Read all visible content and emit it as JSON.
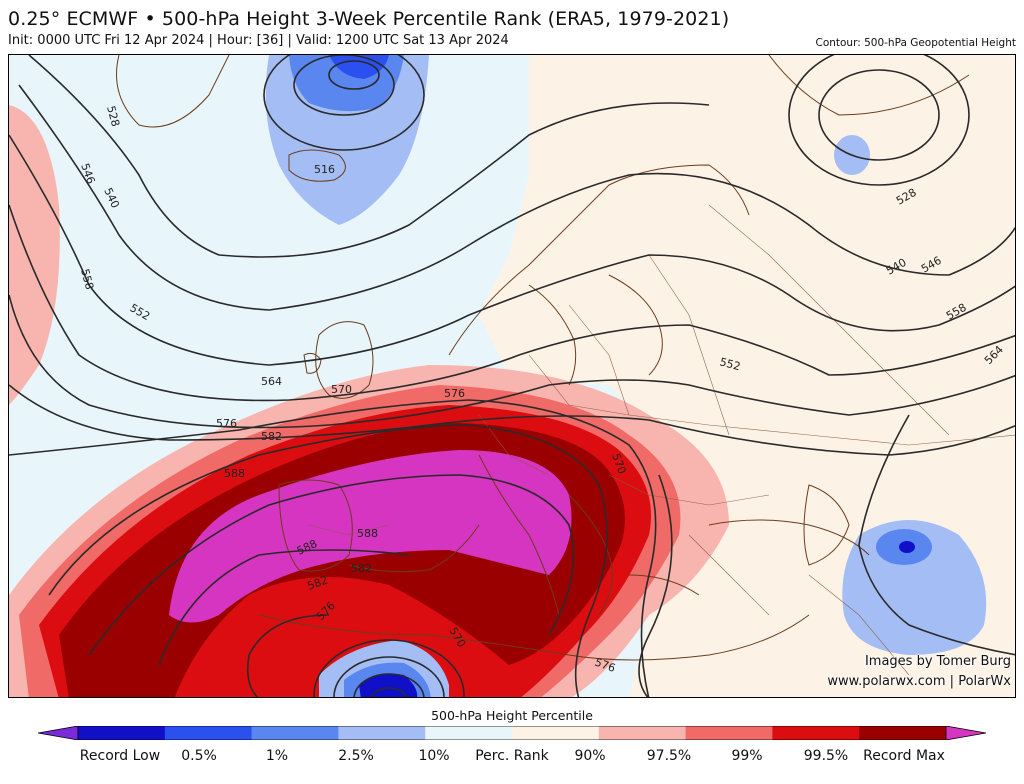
{
  "header": {
    "title": "0.25° ECMWF • 500-hPa Height 3-Week Percentile Rank (ERA5, 1979-2021)",
    "subtitle": "Init: 0000 UTC Fri 12 Apr 2024 | Hour: [36] | Valid: 1200 UTC Sat 13 Apr 2024",
    "contour_note": "Contour: 500-hPa Geopotential Height"
  },
  "map": {
    "region": "Europe / North Atlantic",
    "contour_labels": [
      "528",
      "546",
      "540",
      "558",
      "516",
      "552",
      "564",
      "570",
      "576",
      "582",
      "588",
      "576",
      "570",
      "588",
      "582",
      "588",
      "576",
      "570",
      "582",
      "528",
      "540",
      "546",
      "558",
      "564",
      "552",
      "576"
    ],
    "colors": {
      "record_low": "#7a2ad8",
      "p0_5": "#1010c8",
      "p1": "#2a50f0",
      "p2_5": "#5a86f0",
      "p10": "#a4bdf4",
      "low_band": "#e8f6fb",
      "high_band": "#fdf2e6",
      "p90": "#f8b4ae",
      "p97_5": "#f06a68",
      "p99": "#dc0d10",
      "p99_5": "#9a0000",
      "record_max": "#d535c0"
    }
  },
  "credits": {
    "line1": "Images by Tomer Burg",
    "line2": "www.polarwx.com | PolarWx"
  },
  "colorbar": {
    "title": "500-hPa Height Percentile",
    "labels": [
      "Record Low",
      "0.5%",
      "1%",
      "2.5%",
      "10%",
      "Perc. Rank",
      "90%",
      "97.5%",
      "99%",
      "99.5%",
      "Record Max"
    ],
    "segments": [
      "#1010c8",
      "#2a50f0",
      "#5a86f0",
      "#a4bdf4",
      "#e8f6fb",
      "#fdf2e6",
      "#f8b4ae",
      "#f06a68",
      "#dc0d10",
      "#9a0000"
    ],
    "end_low": "#7a2ad8",
    "end_high": "#d535c0"
  }
}
